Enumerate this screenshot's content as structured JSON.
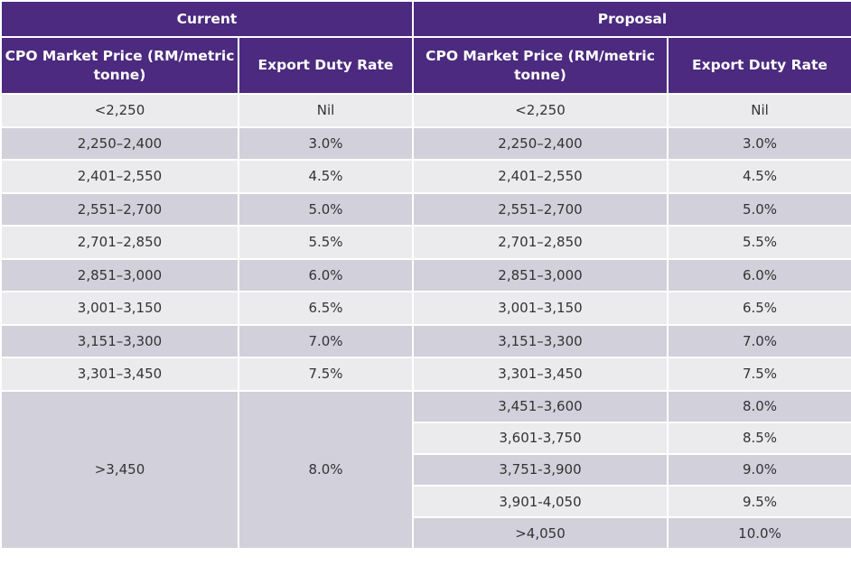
{
  "header": {
    "groups": [
      "Current",
      "Proposal"
    ],
    "columns": [
      "CPO Market Price (RM/metric tonne)",
      "Export Duty Rate",
      "CPO Market Price (RM/metric tonne)",
      "Export Duty Rate"
    ]
  },
  "colors": {
    "header": "#4b2a7f",
    "row_light": "#ebebee",
    "row_dark": "#d2d0da"
  },
  "rows": [
    {
      "cur_price": "<2,250",
      "cur_rate": "Nil",
      "prop_price": "<2,250",
      "prop_rate": "Nil"
    },
    {
      "cur_price": "2,250–2,400",
      "cur_rate": "3.0%",
      "prop_price": "2,250–2,400",
      "prop_rate": "3.0%"
    },
    {
      "cur_price": "2,401–2,550",
      "cur_rate": "4.5%",
      "prop_price": "2,401–2,550",
      "prop_rate": "4.5%"
    },
    {
      "cur_price": "2,551–2,700",
      "cur_rate": "5.0%",
      "prop_price": "2,551–2,700",
      "prop_rate": "5.0%"
    },
    {
      "cur_price": "2,701–2,850",
      "cur_rate": "5.5%",
      "prop_price": "2,701–2,850",
      "prop_rate": "5.5%"
    },
    {
      "cur_price": "2,851–3,000",
      "cur_rate": "6.0%",
      "prop_price": "2,851–3,000",
      "prop_rate": "6.0%"
    },
    {
      "cur_price": "3,001–3,150",
      "cur_rate": "6.5%",
      "prop_price": "3,001–3,150",
      "prop_rate": "6.5%"
    },
    {
      "cur_price": "3,151–3,300",
      "cur_rate": "7.0%",
      "prop_price": "3,151–3,300",
      "prop_rate": "7.0%"
    },
    {
      "cur_price": "3,301–3,450",
      "cur_rate": "7.5%",
      "prop_price": "3,301–3,450",
      "prop_rate": "7.5%"
    }
  ],
  "merged_current": {
    "price": ">3,450",
    "rate": "8.0%"
  },
  "proposal_extra": [
    {
      "price": "3,451–3,600",
      "rate": "8.0%"
    },
    {
      "price": "3,601-3,750",
      "rate": "8.5%"
    },
    {
      "price": "3,751-3,900",
      "rate": "9.0%"
    },
    {
      "price": "3,901-4,050",
      "rate": "9.5%"
    },
    {
      "price": ">4,050",
      "rate": "10.0%"
    }
  ]
}
